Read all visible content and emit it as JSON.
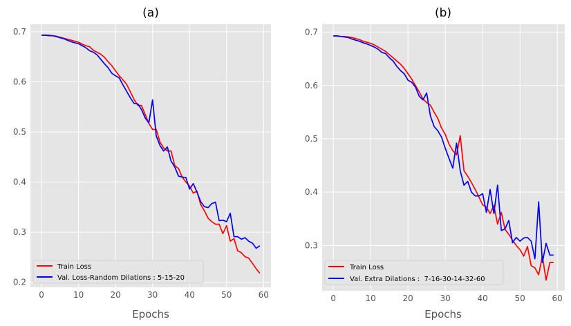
{
  "colors": {
    "panel_background": "#e5e5e5",
    "grid": "#ffffff",
    "tick_text": "#555555",
    "label_text": "#555555",
    "title_text": "#000000",
    "train": "#ff0000",
    "val": "#0000ee"
  },
  "chart_data": [
    {
      "type": "line",
      "title": "(a)",
      "xlabel": "Epochs",
      "ylabel": "",
      "xlim": [
        -3,
        62
      ],
      "ylim": [
        0.19,
        0.715
      ],
      "xticks": [
        0,
        10,
        20,
        30,
        40,
        50,
        60
      ],
      "yticks": [
        0.2,
        0.3,
        0.4,
        0.5,
        0.6,
        0.7
      ],
      "ytick_labels": [
        "0.2",
        "0.3",
        "0.4",
        "0.5",
        "0.6",
        "0.7"
      ],
      "grid": true,
      "legend_position": "lower-left",
      "series": [
        {
          "name": "Train Loss",
          "color": "#ff0000",
          "x": [
            0,
            1,
            2,
            3,
            4,
            5,
            6,
            7,
            8,
            9,
            10,
            11,
            12,
            13,
            14,
            15,
            16,
            17,
            18,
            19,
            20,
            21,
            22,
            23,
            24,
            25,
            26,
            27,
            28,
            29,
            30,
            31,
            32,
            33,
            34,
            35,
            36,
            37,
            38,
            39,
            40,
            41,
            42,
            43,
            44,
            45,
            46,
            47,
            48,
            49,
            50,
            51,
            52,
            53,
            54,
            55,
            56,
            57,
            58,
            59
          ],
          "y": [
            0.693,
            0.693,
            0.693,
            0.692,
            0.691,
            0.689,
            0.687,
            0.685,
            0.683,
            0.681,
            0.679,
            0.675,
            0.672,
            0.67,
            0.663,
            0.659,
            0.655,
            0.649,
            0.64,
            0.632,
            0.622,
            0.612,
            0.604,
            0.595,
            0.58,
            0.565,
            0.553,
            0.553,
            0.535,
            0.517,
            0.505,
            0.505,
            0.48,
            0.468,
            0.462,
            0.462,
            0.433,
            0.427,
            0.41,
            0.4,
            0.392,
            0.378,
            0.382,
            0.355,
            0.343,
            0.328,
            0.321,
            0.316,
            0.316,
            0.297,
            0.313,
            0.282,
            0.287,
            0.263,
            0.259,
            0.251,
            0.248,
            0.238,
            0.227,
            0.218
          ]
        },
        {
          "name": "Val. Loss-Random Dilations : 5-15-20",
          "color": "#0000ee",
          "x": [
            0,
            1,
            2,
            3,
            4,
            5,
            6,
            7,
            8,
            9,
            10,
            11,
            12,
            13,
            14,
            15,
            16,
            17,
            18,
            19,
            20,
            21,
            22,
            23,
            24,
            25,
            26,
            27,
            28,
            29,
            30,
            31,
            32,
            33,
            34,
            35,
            36,
            37,
            38,
            39,
            40,
            41,
            42,
            43,
            44,
            45,
            46,
            47,
            48,
            49,
            50,
            51,
            52,
            53,
            54,
            55,
            56,
            57,
            58,
            59
          ],
          "y": [
            0.693,
            0.693,
            0.692,
            0.692,
            0.69,
            0.688,
            0.686,
            0.683,
            0.68,
            0.678,
            0.676,
            0.672,
            0.668,
            0.662,
            0.659,
            0.654,
            0.645,
            0.636,
            0.628,
            0.617,
            0.612,
            0.608,
            0.594,
            0.581,
            0.568,
            0.557,
            0.556,
            0.545,
            0.528,
            0.518,
            0.564,
            0.492,
            0.473,
            0.462,
            0.47,
            0.442,
            0.43,
            0.412,
            0.41,
            0.409,
            0.386,
            0.397,
            0.38,
            0.361,
            0.351,
            0.349,
            0.357,
            0.36,
            0.323,
            0.324,
            0.321,
            0.338,
            0.291,
            0.291,
            0.286,
            0.289,
            0.282,
            0.278,
            0.268,
            0.273
          ]
        }
      ]
    },
    {
      "type": "line",
      "title": "(b)",
      "xlabel": "Epochs",
      "ylabel": "",
      "xlim": [
        -3,
        62
      ],
      "ylim": [
        0.215,
        0.715
      ],
      "xticks": [
        0,
        10,
        20,
        30,
        40,
        50,
        60
      ],
      "yticks": [
        0.3,
        0.4,
        0.5,
        0.6,
        0.7
      ],
      "ytick_labels": [
        "0.3",
        "0.4",
        "0.5",
        "0.6",
        "0.7"
      ],
      "grid": true,
      "legend_position": "lower-left",
      "series": [
        {
          "name": "Train Loss",
          "color": "#ff0000",
          "x": [
            0,
            1,
            2,
            3,
            4,
            5,
            6,
            7,
            8,
            9,
            10,
            11,
            12,
            13,
            14,
            15,
            16,
            17,
            18,
            19,
            20,
            21,
            22,
            23,
            24,
            25,
            26,
            27,
            28,
            29,
            30,
            31,
            32,
            33,
            34,
            35,
            36,
            37,
            38,
            39,
            40,
            41,
            42,
            43,
            44,
            45,
            46,
            47,
            48,
            49,
            50,
            51,
            52,
            53,
            54,
            55,
            56,
            57,
            58,
            59
          ],
          "y": [
            0.693,
            0.693,
            0.692,
            0.692,
            0.691,
            0.69,
            0.688,
            0.686,
            0.683,
            0.681,
            0.679,
            0.676,
            0.672,
            0.668,
            0.664,
            0.658,
            0.652,
            0.646,
            0.64,
            0.632,
            0.622,
            0.612,
            0.6,
            0.588,
            0.575,
            0.568,
            0.563,
            0.55,
            0.538,
            0.52,
            0.508,
            0.49,
            0.478,
            0.47,
            0.506,
            0.44,
            0.43,
            0.418,
            0.405,
            0.391,
            0.376,
            0.372,
            0.36,
            0.375,
            0.34,
            0.362,
            0.33,
            0.321,
            0.31,
            0.3,
            0.292,
            0.28,
            0.298,
            0.262,
            0.258,
            0.245,
            0.28,
            0.235,
            0.268,
            0.268
          ]
        },
        {
          "name": "Val. Extra Dilations :  7-16-30-14-32-60",
          "color": "#0000ee",
          "x": [
            0,
            1,
            2,
            3,
            4,
            5,
            6,
            7,
            8,
            9,
            10,
            11,
            12,
            13,
            14,
            15,
            16,
            17,
            18,
            19,
            20,
            21,
            22,
            23,
            24,
            25,
            26,
            27,
            28,
            29,
            30,
            31,
            32,
            33,
            34,
            35,
            36,
            37,
            38,
            39,
            40,
            41,
            42,
            43,
            44,
            45,
            46,
            47,
            48,
            49,
            50,
            51,
            52,
            53,
            54,
            55,
            56,
            57,
            58,
            59
          ],
          "y": [
            0.693,
            0.693,
            0.692,
            0.691,
            0.69,
            0.687,
            0.685,
            0.683,
            0.68,
            0.678,
            0.675,
            0.672,
            0.668,
            0.662,
            0.66,
            0.652,
            0.646,
            0.636,
            0.628,
            0.622,
            0.61,
            0.606,
            0.597,
            0.58,
            0.573,
            0.586,
            0.543,
            0.523,
            0.515,
            0.503,
            0.482,
            0.463,
            0.445,
            0.492,
            0.44,
            0.413,
            0.42,
            0.4,
            0.393,
            0.393,
            0.397,
            0.362,
            0.405,
            0.36,
            0.413,
            0.328,
            0.331,
            0.347,
            0.305,
            0.315,
            0.308,
            0.314,
            0.315,
            0.308,
            0.275,
            0.382,
            0.268,
            0.304,
            0.282,
            0.282
          ]
        }
      ]
    }
  ]
}
